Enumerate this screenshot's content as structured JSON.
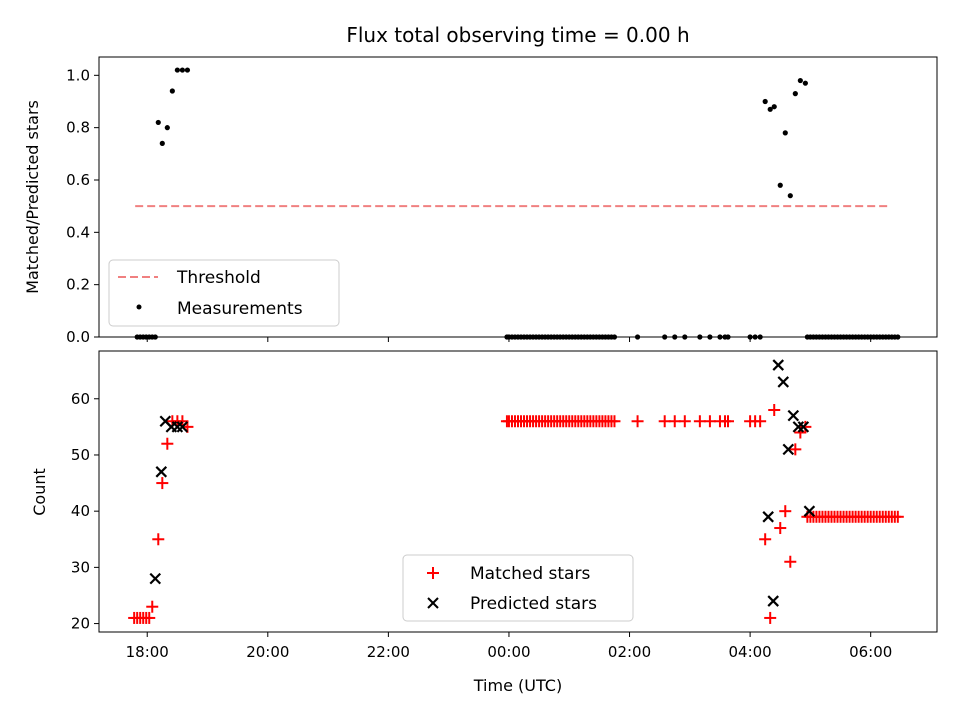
{
  "chart_data": [
    {
      "type": "scatter",
      "title": "Flux total observing time = 0.00 h",
      "xlabel": "",
      "ylabel": "Matched/Predicted stars",
      "xlim": [
        "17:12",
        "07:06"
      ],
      "ylim": [
        0,
        1.07
      ],
      "yticks": [
        "0.0",
        "0.2",
        "0.4",
        "0.6",
        "0.8",
        "1.0"
      ],
      "grid": false,
      "legend": {
        "placement": "lower-left",
        "entries": [
          "Threshold",
          "Measurements"
        ]
      },
      "colors": {
        "threshold": "#f08080",
        "measurements": "#000000"
      },
      "threshold": {
        "name": "Threshold",
        "x": [
          "17:48",
          "06:18"
        ],
        "y": 0.5
      },
      "measurements": {
        "name": "Measurements",
        "x": [
          "17:50",
          "17:53",
          "17:56",
          "17:59",
          "18:02",
          "18:05",
          "18:08",
          "18:11",
          "18:15",
          "18:20",
          "18:25",
          "18:30",
          "18:35",
          "18:40",
          "23:58",
          "00:00",
          "00:03",
          "00:06",
          "00:09",
          "00:12",
          "00:15",
          "00:18",
          "00:21",
          "00:24",
          "00:27",
          "00:30",
          "00:33",
          "00:36",
          "00:39",
          "00:42",
          "00:45",
          "00:48",
          "00:51",
          "00:54",
          "00:57",
          "01:00",
          "01:03",
          "01:06",
          "01:09",
          "01:12",
          "01:15",
          "01:18",
          "01:21",
          "01:24",
          "01:27",
          "01:30",
          "01:33",
          "01:36",
          "01:39",
          "01:42",
          "01:45",
          "02:08",
          "02:35",
          "02:45",
          "02:55",
          "03:10",
          "03:20",
          "03:30",
          "03:35",
          "03:38",
          "04:00",
          "04:05",
          "04:10",
          "04:15",
          "04:20",
          "04:24",
          "04:30",
          "04:35",
          "04:40",
          "04:45",
          "04:50",
          "04:55",
          "04:57",
          "05:00",
          "05:03",
          "05:06",
          "05:09",
          "05:12",
          "05:15",
          "05:18",
          "05:21",
          "05:24",
          "05:27",
          "05:30",
          "05:33",
          "05:36",
          "05:39",
          "05:42",
          "05:45",
          "05:48",
          "05:51",
          "05:54",
          "05:57",
          "06:00",
          "06:03",
          "06:06",
          "06:09",
          "06:12",
          "06:15",
          "06:18",
          "06:21",
          "06:24",
          "06:27"
        ],
        "y": [
          0,
          0,
          0,
          0,
          0,
          0,
          0,
          0.82,
          0.74,
          0.8,
          0.94,
          1.02,
          1.02,
          1.02,
          0,
          0,
          0,
          0,
          0,
          0,
          0,
          0,
          0,
          0,
          0,
          0,
          0,
          0,
          0,
          0,
          0,
          0,
          0,
          0,
          0,
          0,
          0,
          0,
          0,
          0,
          0,
          0,
          0,
          0,
          0,
          0,
          0,
          0,
          0,
          0,
          0,
          0,
          0,
          0,
          0,
          0,
          0,
          0,
          0,
          0,
          0,
          0,
          0,
          0.9,
          0.87,
          0.88,
          0.58,
          0.78,
          0.54,
          0.93,
          0.98,
          0.97,
          0,
          0,
          0,
          0,
          0,
          0,
          0,
          0,
          0,
          0,
          0,
          0,
          0,
          0,
          0,
          0,
          0,
          0,
          0,
          0,
          0,
          0,
          0,
          0,
          0,
          0,
          0,
          0,
          0,
          0,
          0
        ]
      }
    },
    {
      "type": "scatter",
      "title": "",
      "xlabel": "Time (UTC)",
      "ylabel": "Count",
      "xlim": [
        "17:12",
        "07:06"
      ],
      "ylim": [
        18.5,
        68.5
      ],
      "xticks": [
        "18:00",
        "20:00",
        "22:00",
        "00:00",
        "02:00",
        "04:00",
        "06:00"
      ],
      "yticks": [
        "20",
        "30",
        "40",
        "50",
        "60"
      ],
      "grid": false,
      "legend": {
        "placement": "lower-center",
        "entries": [
          "Matched stars",
          "Predicted stars"
        ]
      },
      "colors": {
        "matched": "#ff0000",
        "predicted": "#000000"
      },
      "matched": {
        "name": "Matched stars",
        "x": [
          "17:47",
          "17:50",
          "17:53",
          "17:56",
          "17:59",
          "18:02",
          "18:05",
          "18:11",
          "18:15",
          "18:20",
          "18:25",
          "18:30",
          "18:35",
          "18:40",
          "23:58",
          "00:00",
          "00:03",
          "00:06",
          "00:09",
          "00:12",
          "00:15",
          "00:18",
          "00:21",
          "00:24",
          "00:27",
          "00:30",
          "00:33",
          "00:36",
          "00:39",
          "00:42",
          "00:45",
          "00:48",
          "00:51",
          "00:54",
          "00:57",
          "01:00",
          "01:03",
          "01:06",
          "01:09",
          "01:12",
          "01:15",
          "01:18",
          "01:21",
          "01:24",
          "01:27",
          "01:30",
          "01:33",
          "01:36",
          "01:39",
          "01:42",
          "01:45",
          "02:08",
          "02:35",
          "02:45",
          "02:55",
          "03:10",
          "03:20",
          "03:30",
          "03:35",
          "03:38",
          "04:00",
          "04:05",
          "04:10",
          "04:15",
          "04:20",
          "04:24",
          "04:30",
          "04:35",
          "04:40",
          "04:45",
          "04:50",
          "04:55",
          "04:57",
          "05:00",
          "05:03",
          "05:06",
          "05:09",
          "05:12",
          "05:15",
          "05:18",
          "05:21",
          "05:24",
          "05:27",
          "05:30",
          "05:33",
          "05:36",
          "05:39",
          "05:42",
          "05:45",
          "05:48",
          "05:51",
          "05:54",
          "05:57",
          "06:00",
          "06:03",
          "06:06",
          "06:09",
          "06:12",
          "06:15",
          "06:18",
          "06:21",
          "06:24",
          "06:27"
        ],
        "y": [
          21,
          21,
          21,
          21,
          21,
          21,
          23,
          35,
          45,
          52,
          56,
          56,
          56,
          55,
          56,
          56,
          56,
          56,
          56,
          56,
          56,
          56,
          56,
          56,
          56,
          56,
          56,
          56,
          56,
          56,
          56,
          56,
          56,
          56,
          56,
          56,
          56,
          56,
          56,
          56,
          56,
          56,
          56,
          56,
          56,
          56,
          56,
          56,
          56,
          56,
          56,
          56,
          56,
          56,
          56,
          56,
          56,
          56,
          56,
          56,
          56,
          56,
          56,
          35,
          21,
          58,
          37,
          40,
          31,
          51,
          54,
          55,
          39,
          39,
          39,
          39,
          39,
          39,
          39,
          39,
          39,
          39,
          39,
          39,
          39,
          39,
          39,
          39,
          39,
          39,
          39,
          39,
          39,
          39,
          39,
          39,
          39,
          39,
          39,
          39,
          39,
          39,
          39
        ]
      },
      "predicted": {
        "name": "Predicted stars",
        "x": [
          "18:08",
          "18:14",
          "18:18",
          "18:24",
          "18:30",
          "18:35",
          "04:18",
          "04:23",
          "04:28",
          "04:33",
          "04:38",
          "04:43",
          "04:48",
          "04:53",
          "04:59"
        ],
        "y": [
          28,
          47,
          56,
          55,
          55,
          55,
          39,
          24,
          66,
          63,
          51,
          57,
          55,
          55,
          40
        ]
      }
    }
  ]
}
